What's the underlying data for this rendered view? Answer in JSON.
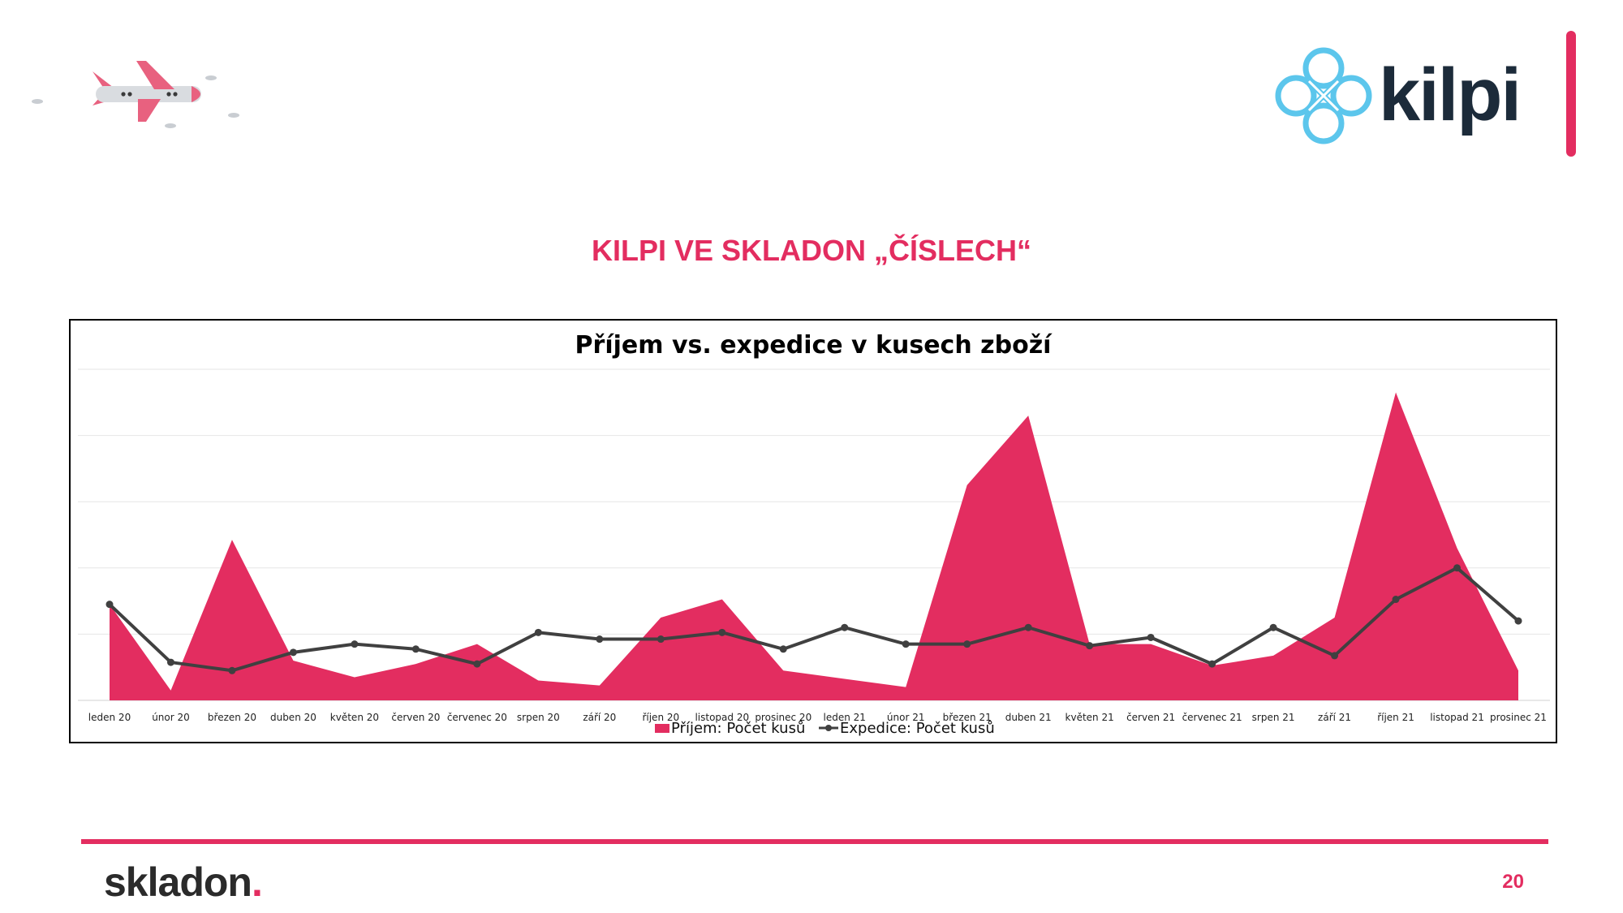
{
  "slide": {
    "title": "KILPI VE SKLADON „ČÍSLECH“",
    "page_number": "20"
  },
  "brand": {
    "kilpi_logo_text": "kilpi",
    "skladon_logo_text": "skladon",
    "skladon_logo_dot": ".",
    "accent_color": "#E32D60",
    "logo_blue": "#5CC6EC",
    "logo_dark": "#1C2B3A"
  },
  "chart_data": {
    "type": "area",
    "title": "Příjem vs. expedice v kusech zboží",
    "xlabel": "",
    "ylabel": "",
    "categories": [
      "leden 20",
      "únor 20",
      "březen 20",
      "duben 20",
      "květen 20",
      "červen 20",
      "červenec 20",
      "srpen 20",
      "září 20",
      "říjen 20",
      "listopad 20",
      "prosinec 20",
      "leden 21",
      "únor 21",
      "březen 21",
      "duben 21",
      "květen 21",
      "červen 21",
      "červenec 21",
      "srpen 21",
      "září 21",
      "říjen 21",
      "listopad 21",
      "prosinec 21"
    ],
    "ylim": [
      0,
      100
    ],
    "grid": true,
    "legend": "bottom",
    "series": [
      {
        "name": "Příjem: Počet kusů",
        "type": "area",
        "color": "#E32D60",
        "values": [
          29,
          3,
          48.5,
          12,
          7,
          11,
          17,
          6,
          4.5,
          25,
          30.5,
          9,
          6.5,
          4,
          65,
          86,
          17,
          17,
          10.5,
          13.5,
          25,
          93,
          46,
          9
        ]
      },
      {
        "name": "Expedice: Počet kusů",
        "type": "line",
        "color": "#404040",
        "values": [
          29,
          11.5,
          9,
          14.5,
          17,
          15.5,
          11,
          20.5,
          18.5,
          18.5,
          20.5,
          15.5,
          22,
          17,
          17,
          22,
          16.5,
          19,
          11,
          22,
          13.5,
          30.5,
          40,
          24
        ]
      }
    ]
  }
}
